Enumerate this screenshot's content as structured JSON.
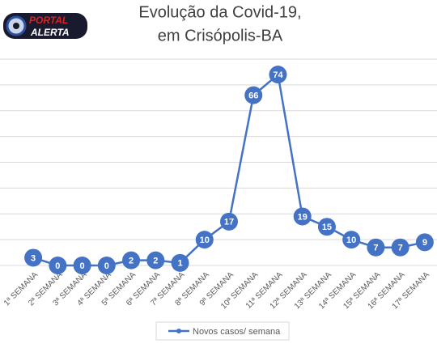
{
  "logo": {
    "line1": "PORTAL",
    "line2": "ALERTA"
  },
  "chart_data": {
    "type": "line",
    "title": [
      "Evolução da Covid-19,",
      "em Crisópolis-BA"
    ],
    "categories": [
      "1ª SEMANA",
      "2ª SEMANA",
      "3ª SEMANA",
      "4ª SEMANA",
      "5ª SEMANA",
      "6ª SEMANA",
      "7ª SEMANA",
      "8ª SEMANA",
      "9ª SEMANA",
      "10ª SEMANA",
      "11ª SEMANA",
      "12ª SEMANA",
      "13ª SEMANA",
      "14ª SEMANA",
      "15ª SEMANA",
      "16ª SEMANA",
      "17ª SEMANA"
    ],
    "series": [
      {
        "name": "Novos casos/ semana",
        "color": "#4472c4",
        "values": [
          3,
          0,
          0,
          0,
          2,
          2,
          1,
          10,
          17,
          66,
          74,
          19,
          15,
          10,
          7,
          7,
          9
        ]
      }
    ],
    "ylim": [
      0,
      80
    ],
    "yticks": [
      0,
      10,
      20,
      30,
      40,
      50,
      60,
      70,
      80
    ],
    "grid": true
  }
}
